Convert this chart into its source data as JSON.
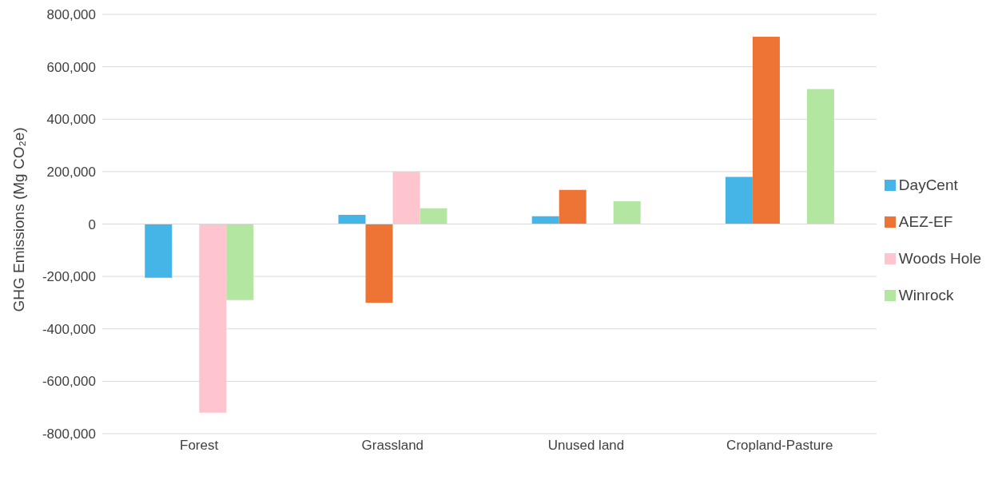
{
  "chart_data": {
    "type": "bar",
    "ylabel": "GHG Emissions (Mg CO₂e)",
    "categories": [
      "Forest",
      "Grassland",
      "Unused land",
      "Cropland-Pasture"
    ],
    "series": [
      {
        "name": "DayCent",
        "color": "#45b4e6",
        "values": [
          -205000,
          35000,
          30000,
          180000
        ]
      },
      {
        "name": "AEZ-EF",
        "color": "#ed7434",
        "values": [
          null,
          -300000,
          130000,
          715000
        ]
      },
      {
        "name": "Woods Hole",
        "color": "#ffc5cf",
        "values": [
          -720000,
          200000,
          null,
          null
        ]
      },
      {
        "name": "Winrock",
        "color": "#b3e6a1",
        "values": [
          -290000,
          60000,
          87000,
          515000
        ]
      }
    ],
    "ylim": [
      -800000,
      800000
    ],
    "yticks": [
      {
        "value": -800000,
        "label": "-800,000"
      },
      {
        "value": -600000,
        "label": "-600,000"
      },
      {
        "value": -400000,
        "label": "-400,000"
      },
      {
        "value": -200000,
        "label": "-200,000"
      },
      {
        "value": 0,
        "label": "0"
      },
      {
        "value": 200000,
        "label": "200,000"
      },
      {
        "value": 400000,
        "label": "400,000"
      },
      {
        "value": 600000,
        "label": "600,000"
      },
      {
        "value": 800000,
        "label": "800,000"
      }
    ],
    "grid": "y",
    "legend": "right"
  }
}
